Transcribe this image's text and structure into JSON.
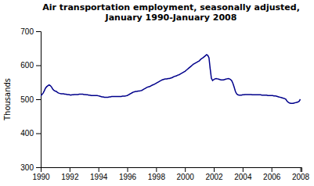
{
  "chart_data": {
    "type": "line",
    "title": "Air transportation employment, seasonally adjusted,\nJanuary 1990-January 2008",
    "ylabel": "Thousands",
    "color": "#00008B",
    "grid": false,
    "xlim": [
      1990,
      2008.08
    ],
    "ylim": [
      300,
      700
    ],
    "xticks": [
      1990,
      1992,
      1994,
      1996,
      1998,
      2000,
      2002,
      2004,
      2006,
      2008
    ],
    "yticks": [
      300,
      400,
      500,
      600,
      700
    ],
    "x": [
      1990.0,
      1990.083,
      1990.167,
      1990.25,
      1990.333,
      1990.417,
      1990.5,
      1990.583,
      1990.667,
      1990.75,
      1990.833,
      1990.917,
      1991.0,
      1991.083,
      1991.167,
      1991.25,
      1991.333,
      1991.417,
      1991.5,
      1991.583,
      1991.667,
      1991.75,
      1991.833,
      1991.917,
      1992.0,
      1992.083,
      1992.167,
      1992.25,
      1992.333,
      1992.417,
      1992.5,
      1992.583,
      1992.667,
      1992.75,
      1992.833,
      1992.917,
      1993.0,
      1993.083,
      1993.167,
      1993.25,
      1993.333,
      1993.417,
      1993.5,
      1993.583,
      1993.667,
      1993.75,
      1993.833,
      1993.917,
      1994.0,
      1994.083,
      1994.167,
      1994.25,
      1994.333,
      1994.417,
      1994.5,
      1994.583,
      1994.667,
      1994.75,
      1994.833,
      1994.917,
      1995.0,
      1995.083,
      1995.167,
      1995.25,
      1995.333,
      1995.417,
      1995.5,
      1995.583,
      1995.667,
      1995.75,
      1995.833,
      1995.917,
      1996.0,
      1996.083,
      1996.167,
      1996.25,
      1996.333,
      1996.417,
      1996.5,
      1996.583,
      1996.667,
      1996.75,
      1996.833,
      1996.917,
      1997.0,
      1997.083,
      1997.167,
      1997.25,
      1997.333,
      1997.417,
      1997.5,
      1997.583,
      1997.667,
      1997.75,
      1997.833,
      1997.917,
      1998.0,
      1998.083,
      1998.167,
      1998.25,
      1998.333,
      1998.417,
      1998.5,
      1998.583,
      1998.667,
      1998.75,
      1998.833,
      1998.917,
      1999.0,
      1999.083,
      1999.167,
      1999.25,
      1999.333,
      1999.417,
      1999.5,
      1999.583,
      1999.667,
      1999.75,
      1999.833,
      1999.917,
      2000.0,
      2000.083,
      2000.167,
      2000.25,
      2000.333,
      2000.417,
      2000.5,
      2000.583,
      2000.667,
      2000.75,
      2000.833,
      2000.917,
      2001.0,
      2001.083,
      2001.167,
      2001.25,
      2001.333,
      2001.417,
      2001.5,
      2001.583,
      2001.667,
      2001.75,
      2001.833,
      2001.917,
      2002.0,
      2002.083,
      2002.167,
      2002.25,
      2002.333,
      2002.417,
      2002.5,
      2002.583,
      2002.667,
      2002.75,
      2002.833,
      2002.917,
      2003.0,
      2003.083,
      2003.167,
      2003.25,
      2003.333,
      2003.417,
      2003.5,
      2003.583,
      2003.667,
      2003.75,
      2003.833,
      2003.917,
      2004.0,
      2004.083,
      2004.167,
      2004.25,
      2004.333,
      2004.417,
      2004.5,
      2004.583,
      2004.667,
      2004.75,
      2004.833,
      2004.917,
      2005.0,
      2005.083,
      2005.167,
      2005.25,
      2005.333,
      2005.417,
      2005.5,
      2005.583,
      2005.667,
      2005.75,
      2005.833,
      2005.917,
      2006.0,
      2006.083,
      2006.167,
      2006.25,
      2006.333,
      2006.417,
      2006.5,
      2006.583,
      2006.667,
      2006.75,
      2006.833,
      2006.917,
      2007.0,
      2007.083,
      2007.167,
      2007.25,
      2007.333,
      2007.417,
      2007.5,
      2007.583,
      2007.667,
      2007.75,
      2007.833,
      2007.917,
      2008.0
    ],
    "values": [
      510,
      514,
      518,
      525,
      533,
      537,
      540,
      542,
      540,
      536,
      530,
      526,
      524,
      523,
      520,
      518,
      517,
      516,
      516,
      516,
      515,
      515,
      514,
      514,
      513,
      512,
      513,
      513,
      514,
      514,
      514,
      514,
      515,
      515,
      515,
      515,
      514,
      514,
      513,
      513,
      512,
      512,
      511,
      511,
      511,
      511,
      511,
      511,
      510,
      509,
      508,
      507,
      507,
      506,
      506,
      506,
      506,
      507,
      507,
      508,
      508,
      508,
      508,
      508,
      508,
      508,
      508,
      508,
      509,
      509,
      509,
      510,
      511,
      513,
      515,
      517,
      519,
      521,
      522,
      523,
      523,
      524,
      524,
      525,
      526,
      528,
      530,
      532,
      534,
      536,
      537,
      538,
      540,
      542,
      543,
      545,
      547,
      549,
      551,
      553,
      555,
      557,
      558,
      559,
      560,
      560,
      561,
      561,
      562,
      563,
      565,
      567,
      568,
      569,
      571,
      572,
      574,
      576,
      578,
      580,
      582,
      585,
      588,
      591,
      594,
      597,
      600,
      603,
      605,
      607,
      609,
      611,
      613,
      617,
      620,
      622,
      625,
      628,
      631,
      629,
      622,
      590,
      562,
      555,
      558,
      560,
      561,
      560,
      559,
      558,
      557,
      557,
      557,
      558,
      559,
      560,
      561,
      560,
      558,
      554,
      546,
      535,
      523,
      516,
      513,
      512,
      512,
      512,
      513,
      513,
      514,
      514,
      514,
      514,
      514,
      514,
      513,
      513,
      513,
      513,
      513,
      513,
      513,
      513,
      512,
      512,
      512,
      512,
      512,
      511,
      511,
      511,
      511,
      511,
      510,
      510,
      509,
      508,
      507,
      506,
      505,
      504,
      503,
      502,
      500,
      494,
      491,
      489,
      488,
      488,
      488,
      489,
      490,
      491,
      492,
      494,
      500
    ]
  }
}
